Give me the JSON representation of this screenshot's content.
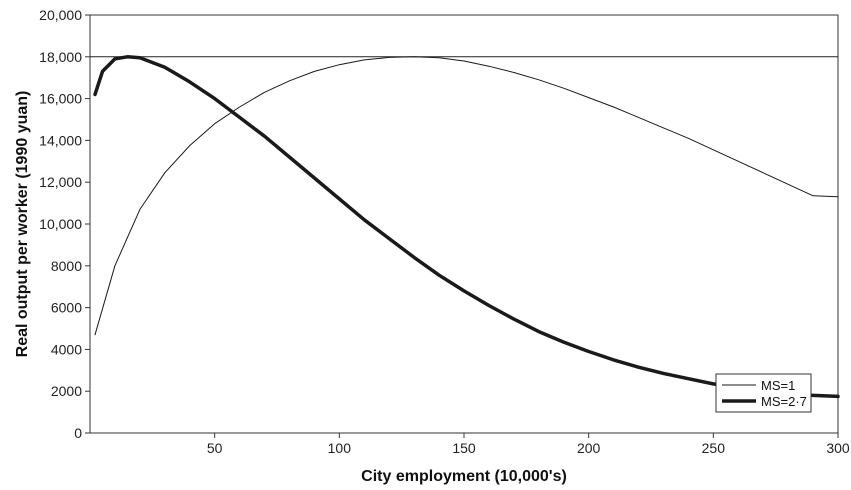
{
  "chart_data": {
    "type": "line",
    "title": "",
    "xlabel": "City employment (10,000's)",
    "ylabel": "Real output per worker (1990 yuan)",
    "xlim": [
      0,
      300
    ],
    "ylim": [
      0,
      20000
    ],
    "x_ticks": [
      50,
      100,
      150,
      200,
      250,
      300
    ],
    "x_tick_labels": [
      "50",
      "100",
      "150",
      "200",
      "250",
      "300"
    ],
    "y_ticks": [
      0,
      2000,
      4000,
      6000,
      8000,
      10000,
      12000,
      14000,
      16000,
      18000,
      20000
    ],
    "y_tick_labels": [
      "0",
      "2000",
      "4000",
      "6000",
      "8000",
      "10,000",
      "12,000",
      "14,000",
      "16,000",
      "18,000",
      "20,000"
    ],
    "grid": false,
    "reference_line": {
      "y": 18000
    },
    "legend_position": "bottom-right",
    "series": [
      {
        "name": "MS=1",
        "style": "thin",
        "x": [
          2,
          10,
          20,
          30,
          40,
          50,
          60,
          70,
          80,
          90,
          100,
          110,
          120,
          130,
          140,
          150,
          160,
          170,
          180,
          190,
          200,
          210,
          220,
          230,
          240,
          250,
          260,
          270,
          280,
          290,
          300
        ],
        "y": [
          4700,
          8000,
          10700,
          12450,
          13750,
          14800,
          15600,
          16300,
          16850,
          17300,
          17620,
          17850,
          17970,
          18000,
          17950,
          17800,
          17550,
          17250,
          16900,
          16500,
          16050,
          15600,
          15100,
          14600,
          14100,
          13550,
          13000,
          12450,
          11900,
          11350,
          11300
        ]
      },
      {
        "name": "MS=2·7",
        "style": "thick",
        "x": [
          2,
          5,
          10,
          15,
          20,
          30,
          40,
          50,
          60,
          70,
          80,
          90,
          100,
          110,
          120,
          130,
          140,
          150,
          160,
          170,
          180,
          190,
          200,
          210,
          220,
          230,
          240,
          250,
          260,
          270,
          280,
          290,
          300
        ],
        "y": [
          16200,
          17300,
          17900,
          18000,
          17950,
          17500,
          16800,
          16000,
          15100,
          14200,
          13200,
          12200,
          11200,
          10200,
          9300,
          8400,
          7550,
          6800,
          6100,
          5450,
          4850,
          4350,
          3900,
          3500,
          3150,
          2850,
          2600,
          2350,
          2150,
          1950,
          1850,
          1800,
          1750
        ]
      }
    ]
  }
}
